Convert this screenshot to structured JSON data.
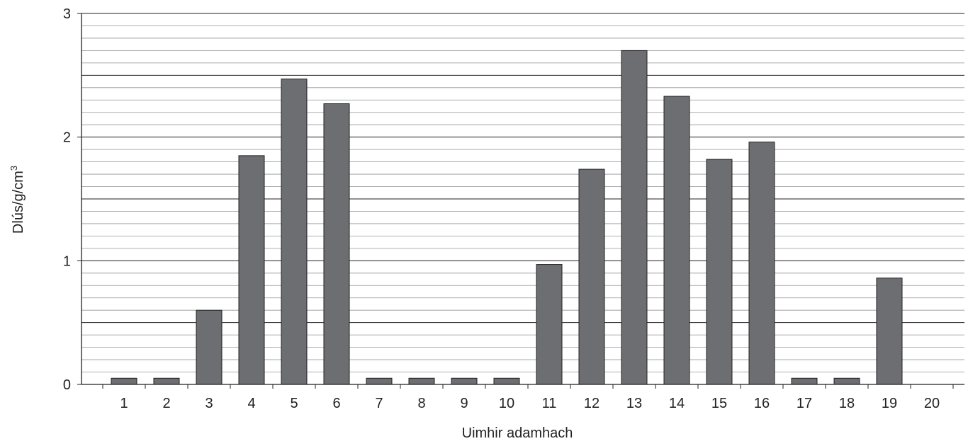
{
  "chart_data": {
    "type": "bar",
    "xlabel": "Uimhir adamhach",
    "ylabel_main": "Dlús/g/cm",
    "ylabel_sup": "3",
    "categories": [
      "1",
      "2",
      "3",
      "4",
      "5",
      "6",
      "7",
      "8",
      "9",
      "10",
      "11",
      "12",
      "13",
      "14",
      "15",
      "16",
      "17",
      "18",
      "19",
      "20"
    ],
    "values": [
      0.05,
      0.05,
      0.6,
      1.85,
      2.47,
      2.27,
      0.05,
      0.05,
      0.05,
      0.05,
      0.97,
      1.74,
      2.7,
      2.33,
      1.82,
      1.96,
      0.05,
      0.05,
      0.86,
      0.0
    ],
    "ylim": [
      0,
      3
    ],
    "yticks": [
      "0",
      "1",
      "2",
      "3"
    ],
    "minor_step": 0.1,
    "grid": true,
    "colors": {
      "bar": "#6d6e71",
      "bar_stroke": "#231f20",
      "grid_major": "#231f20",
      "grid_minor": "#939598",
      "axis": "#231f20"
    }
  }
}
